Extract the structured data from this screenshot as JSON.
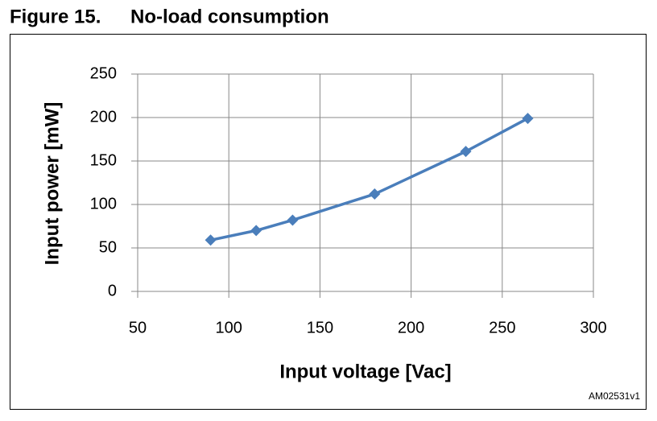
{
  "chart_data": {
    "type": "line",
    "figure_label": "Figure 15.",
    "title": "No-load consumption",
    "x_label": "Input voltage [Vac]",
    "y_label": "Input power  [mW]",
    "footnote": "AM02531v1",
    "x": [
      90,
      115,
      135,
      180,
      230,
      264
    ],
    "series": [
      {
        "name": "Input power",
        "color": "#4a7ebb",
        "values": [
          59,
          70,
          82,
          112,
          161,
          199
        ]
      }
    ],
    "xlim": [
      50,
      300
    ],
    "xticks": [
      50,
      100,
      150,
      200,
      250,
      300
    ],
    "ylim": [
      0,
      250
    ],
    "yticks": [
      0,
      50,
      100,
      150,
      200,
      250
    ],
    "grid": true
  }
}
